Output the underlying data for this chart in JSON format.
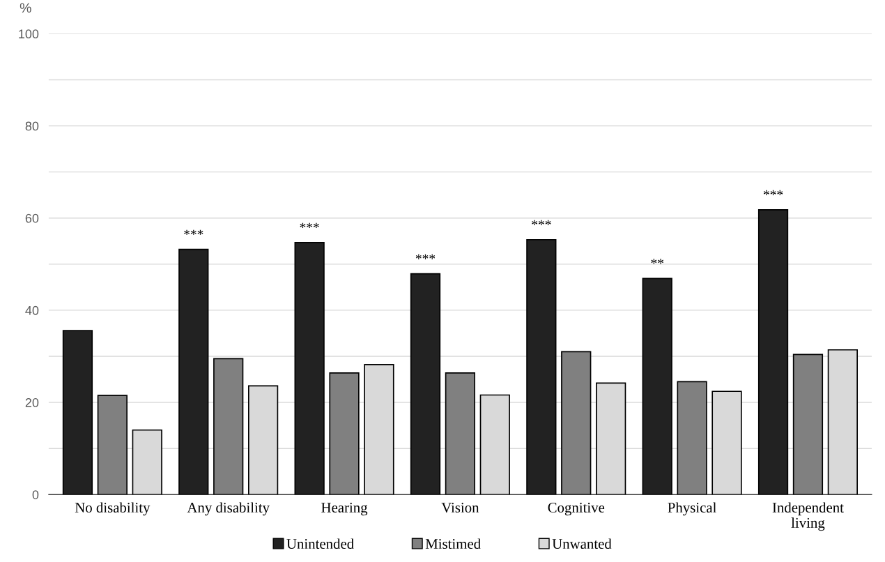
{
  "chart_data": {
    "type": "bar",
    "ylabel": "%",
    "categories": [
      "No disability",
      "Any disability",
      "Hearing",
      "Vision",
      "Cognitive",
      "Physical",
      "Independent living"
    ],
    "series": [
      {
        "name": "Unintended",
        "color": "#222222",
        "values": [
          35.6,
          53.2,
          54.7,
          47.9,
          55.3,
          46.9,
          61.8
        ],
        "value_labels": [
          null,
          "***",
          "***",
          "***",
          "***",
          "**",
          "***"
        ]
      },
      {
        "name": "Mistimed",
        "color": "#808080",
        "values": [
          21.5,
          29.5,
          26.4,
          26.4,
          31.0,
          24.5,
          30.4
        ]
      },
      {
        "name": "Unwanted",
        "color": "#d9d9d9",
        "values": [
          14.0,
          23.6,
          28.2,
          21.6,
          24.2,
          22.4,
          31.4
        ]
      }
    ],
    "ylim": [
      0,
      100
    ],
    "yticks": [
      0,
      {
        "value": 10,
        "label": null
      },
      20,
      {
        "value": 30,
        "label": null
      },
      40,
      {
        "value": 50,
        "label": null
      },
      60,
      {
        "value": 70,
        "label": null
      },
      80,
      {
        "value": 90,
        "label": null
      },
      100
    ],
    "grid": "y",
    "legend": "bottom"
  }
}
